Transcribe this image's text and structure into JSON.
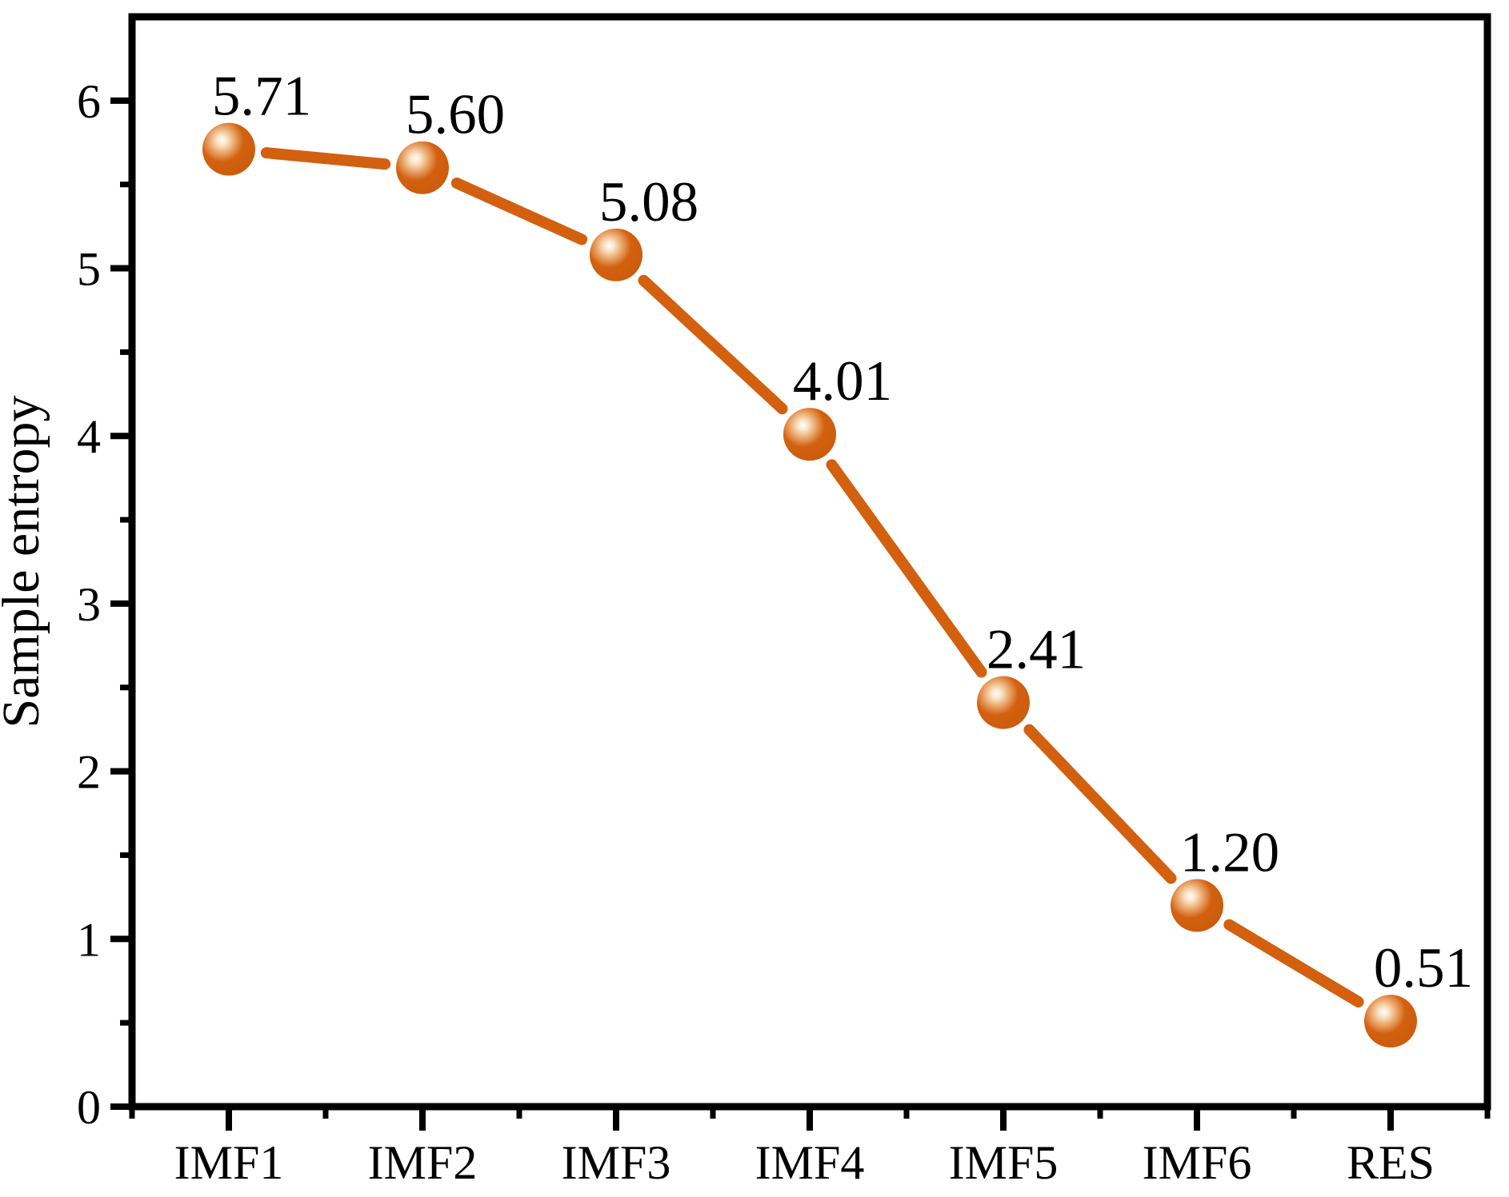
{
  "chart_data": {
    "type": "line",
    "title": "",
    "xlabel": "",
    "ylabel": "Sample entropy",
    "categories": [
      "IMF1",
      "IMF2",
      "IMF3",
      "IMF4",
      "IMF5",
      "IMF6",
      "RES"
    ],
    "values": [
      5.71,
      5.6,
      5.08,
      4.01,
      2.41,
      1.2,
      0.51
    ],
    "value_labels": [
      "5.71",
      "5.60",
      "5.08",
      "4.01",
      "2.41",
      "1.20",
      "0.51"
    ],
    "ylim": [
      0,
      6.5
    ],
    "y_major_ticks": [
      0,
      1,
      2,
      3,
      4,
      5,
      6
    ],
    "y_minor_step": 0.5,
    "grid": false,
    "legend": "none",
    "marker_shape": "glossy-sphere",
    "colors": {
      "line": "#D2600F",
      "marker_base": "#D2600F",
      "marker_highlight": "#FFFDF8",
      "axis": "#000000",
      "text": "#000000",
      "background": "#FFFFFF"
    }
  }
}
